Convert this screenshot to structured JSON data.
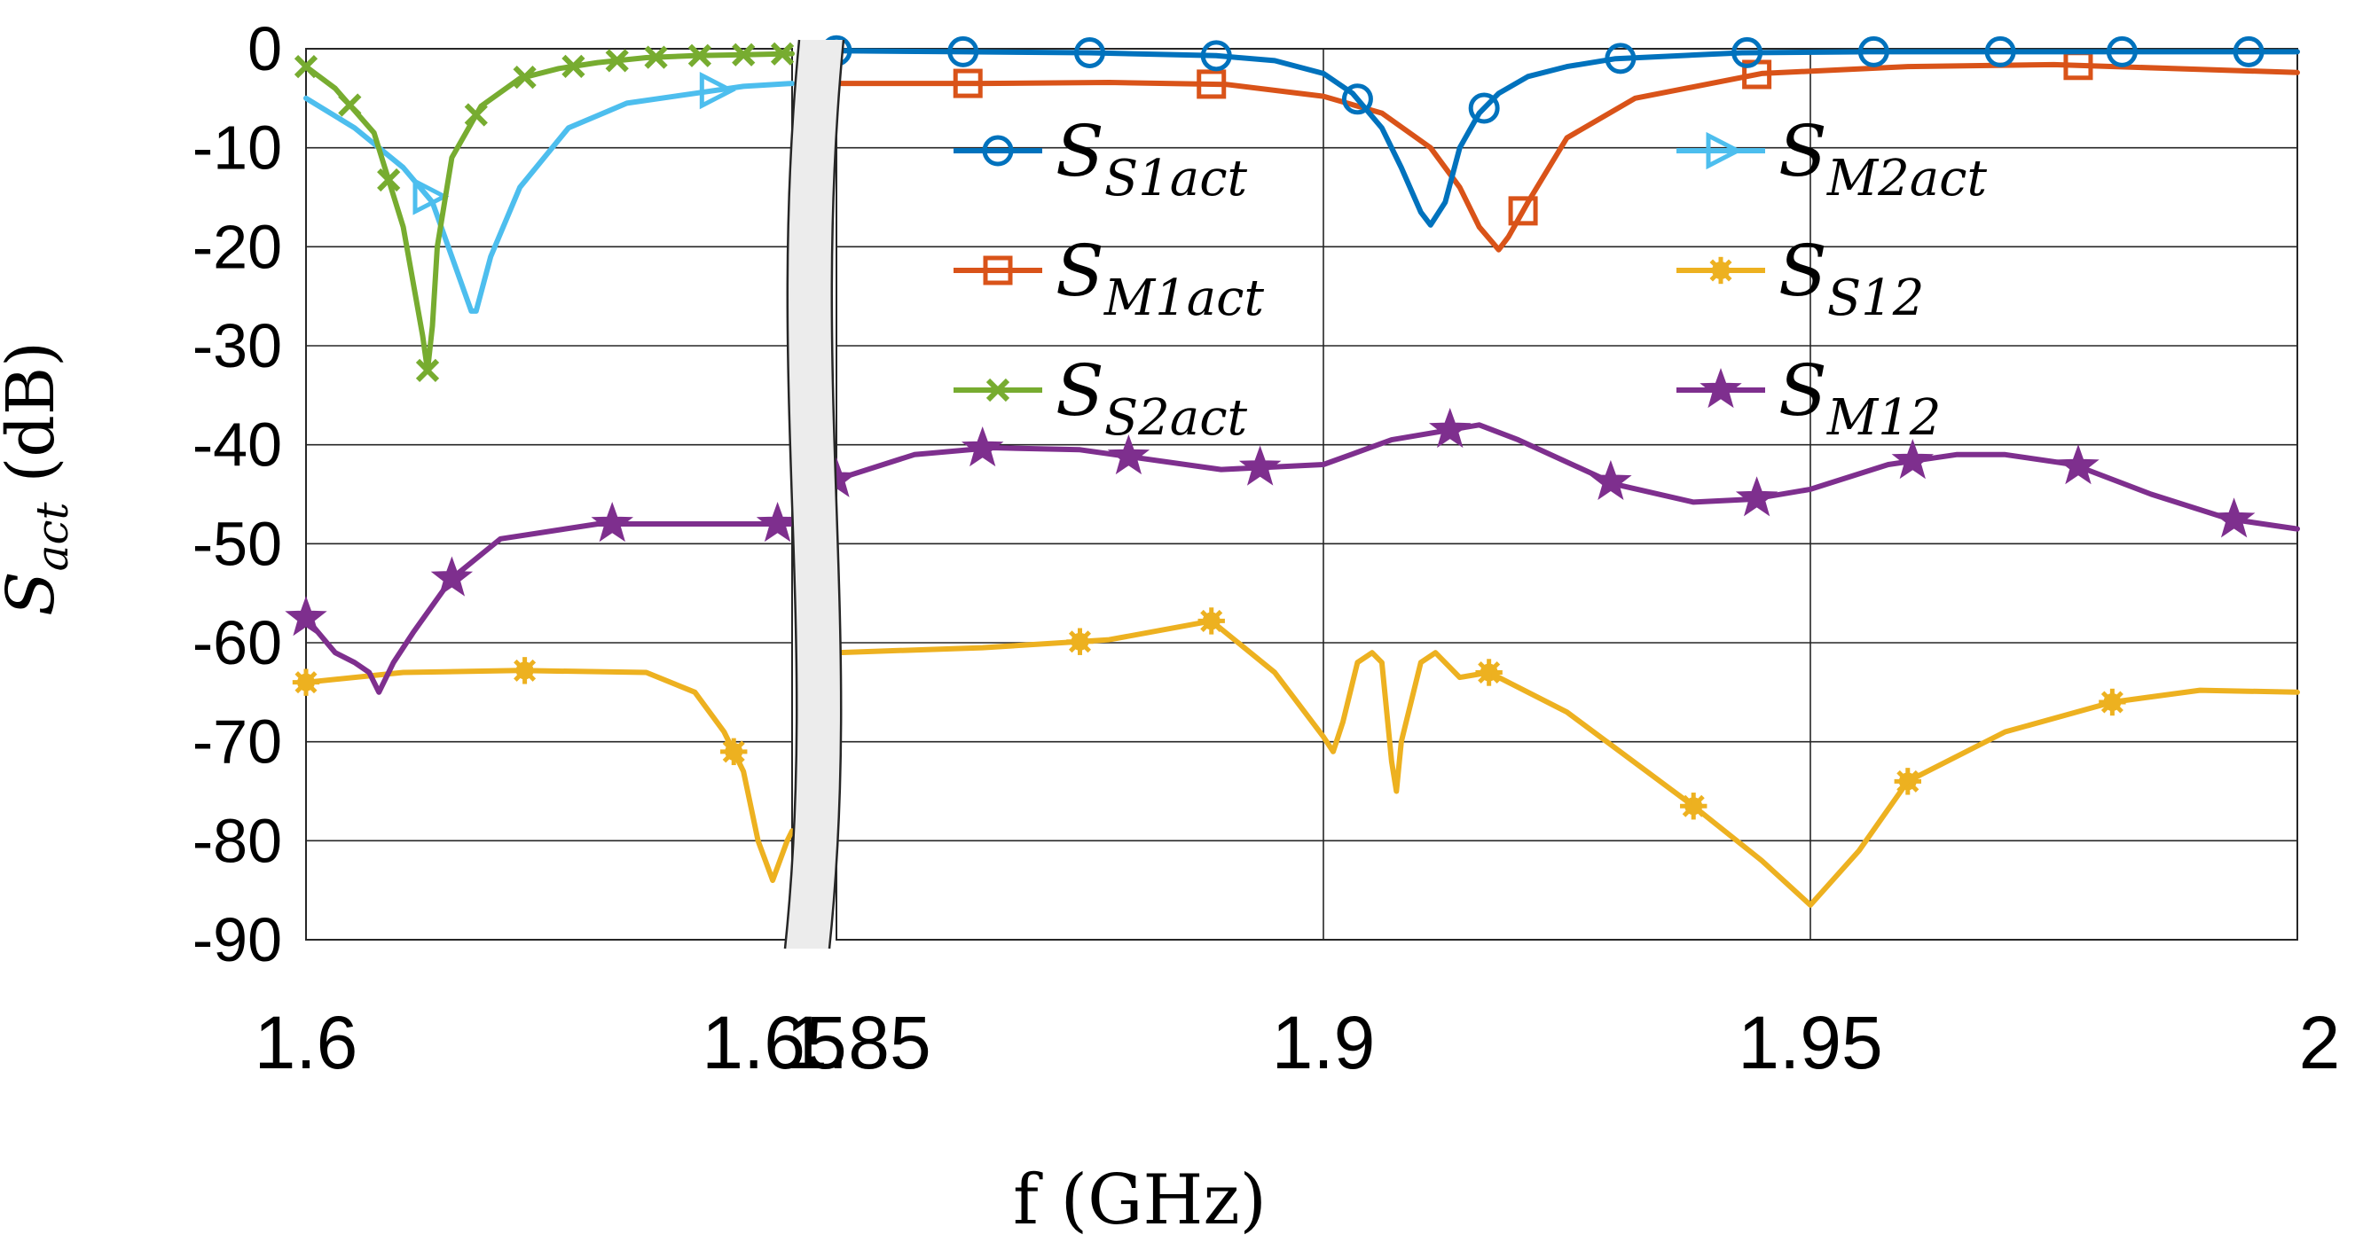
{
  "chart_data": {
    "type": "line",
    "ylabel": "S_act (dB)",
    "ylabel_main": "S",
    "ylabel_sub": "act",
    "ylabel_unit": "(dB)",
    "xlabel": "f (GHz)",
    "ylim": [
      -90,
      0
    ],
    "yticks": [
      0,
      -10,
      -20,
      -30,
      -40,
      -50,
      -60,
      -70,
      -80,
      -90
    ],
    "ytick_labels": [
      "0",
      "-10",
      "-20",
      "-30",
      "-40",
      "-50",
      "-60",
      "-70",
      "-80",
      "-90"
    ],
    "x_break": true,
    "xlim_left": [
      1.6,
      1.65
    ],
    "xlim_right": [
      1.85,
      2.0
    ],
    "xtick_labels_left": [
      "1.6",
      "1.65"
    ],
    "xtick_labels_right": [
      "1.85",
      "1.9",
      "1.95",
      "2"
    ],
    "grid": true,
    "legend_position": "upper-middle",
    "series": [
      {
        "name": "S_S1act",
        "label_main": "S",
        "label_sub": "S1act",
        "color": "#0072bd",
        "marker": "circle",
        "x": [
          1.6,
          1.645,
          1.65,
          1.85,
          1.863,
          1.876,
          1.889,
          1.895,
          1.9,
          1.903,
          1.906,
          1.908,
          1.91,
          1.911,
          1.9125,
          1.914,
          1.916,
          1.918,
          1.921,
          1.925,
          1.93,
          1.943,
          1.956,
          1.969,
          1.982,
          2.0
        ],
        "values": [
          null,
          null,
          null,
          -0.2,
          -0.3,
          -0.4,
          -0.7,
          -1.2,
          -2.5,
          -4.5,
          -8.0,
          -12.0,
          -16.5,
          -17.8,
          -15.5,
          -10.0,
          -6.5,
          -4.5,
          -2.8,
          -1.8,
          -1.0,
          -0.4,
          -0.3,
          -0.3,
          -0.3,
          -0.3
        ]
      },
      {
        "name": "S_M1act",
        "label_main": "S",
        "label_sub": "M1act",
        "color": "#d95319",
        "marker": "square",
        "x": [
          1.85,
          1.865,
          1.878,
          1.89,
          1.9,
          1.906,
          1.911,
          1.914,
          1.916,
          1.918,
          1.919,
          1.921,
          1.925,
          1.932,
          1.945,
          1.96,
          1.975,
          2.0
        ],
        "values": [
          -3.5,
          -3.5,
          -3.4,
          -3.6,
          -4.8,
          -6.5,
          -10.0,
          -14.0,
          -18.0,
          -20.3,
          -19.0,
          -15.5,
          -9.0,
          -5.0,
          -2.5,
          -1.8,
          -1.6,
          -2.4
        ]
      },
      {
        "name": "S_S2act",
        "label_main": "S",
        "label_sub": "S2act",
        "color": "#77ac30",
        "marker": "x",
        "x": [
          1.6,
          1.603,
          1.607,
          1.61,
          1.612,
          1.6125,
          1.613,
          1.6135,
          1.615,
          1.618,
          1.622,
          1.626,
          1.63,
          1.635,
          1.64,
          1.645,
          1.65
        ],
        "values": [
          -1.8,
          -4.0,
          -8.5,
          -18.0,
          -29.0,
          -32.5,
          -28.0,
          -20.0,
          -11.0,
          -5.8,
          -3.0,
          -2.0,
          -1.4,
          -0.9,
          -0.7,
          -0.6,
          -0.5
        ]
      },
      {
        "name": "S_M2act",
        "label_main": "S",
        "label_sub": "M2act",
        "color": "#4dbeee",
        "marker": "triangle-right",
        "x": [
          1.6,
          1.605,
          1.61,
          1.613,
          1.615,
          1.617,
          1.6175,
          1.619,
          1.622,
          1.627,
          1.633,
          1.64,
          1.645,
          1.65
        ],
        "values": [
          -5.0,
          -8.0,
          -12.0,
          -15.5,
          -21.0,
          -26.5,
          -26.5,
          -21.0,
          -14.0,
          -8.0,
          -5.5,
          -4.5,
          -3.8,
          -3.5
        ]
      },
      {
        "name": "S_S12",
        "label_main": "S",
        "label_sub": "S12",
        "color": "#edb120",
        "marker": "asterisk",
        "x": [
          1.6,
          1.61,
          1.622,
          1.635,
          1.64,
          1.643,
          1.645,
          1.6465,
          1.648,
          1.6495,
          1.65,
          1.85,
          1.865,
          1.878,
          1.8885,
          1.895,
          1.9,
          1.901,
          1.902,
          1.9035,
          1.905,
          1.906,
          1.907,
          1.9075,
          1.908,
          1.91,
          1.9115,
          1.914,
          1.917,
          1.925,
          1.938,
          1.945,
          1.95,
          1.955,
          1.96,
          1.97,
          1.981,
          1.99,
          2.0
        ],
        "values": [
          -64.0,
          -63.0,
          -62.8,
          -63.0,
          -65.0,
          -69.0,
          -73.0,
          -80.0,
          -84.0,
          -80.0,
          -79.0,
          -61.0,
          -60.5,
          -59.7,
          -57.8,
          -63.0,
          -69.5,
          -71.0,
          -68.0,
          -62.0,
          -61.0,
          -62.0,
          -72.0,
          -75.0,
          -70.0,
          -62.0,
          -61.0,
          -63.5,
          -63.0,
          -67.0,
          -76.5,
          -82.0,
          -86.5,
          -81.0,
          -74.0,
          -69.0,
          -66.0,
          -64.8,
          -65.0
        ]
      },
      {
        "name": "S_M12",
        "label_main": "S",
        "label_sub": "M12",
        "color": "#7e2f8e",
        "marker": "star",
        "x": [
          1.6,
          1.603,
          1.605,
          1.6065,
          1.6075,
          1.609,
          1.611,
          1.615,
          1.62,
          1.63,
          1.64,
          1.65,
          1.85,
          1.858,
          1.866,
          1.875,
          1.8895,
          1.9,
          1.907,
          1.913,
          1.916,
          1.92,
          1.93,
          1.938,
          1.944,
          1.95,
          1.958,
          1.965,
          1.97,
          1.977,
          1.985,
          1.993,
          2.0
        ],
        "values": [
          -57.5,
          -61.0,
          -62.0,
          -63.0,
          -65.0,
          -62.0,
          -59.0,
          -53.5,
          -49.5,
          -48.0,
          -48.0,
          -48.0,
          -43.5,
          -41.0,
          -40.3,
          -40.5,
          -42.5,
          -42.0,
          -39.5,
          -38.5,
          -38.0,
          -39.5,
          -44.0,
          -45.8,
          -45.5,
          -44.5,
          -42.0,
          -41.0,
          -41.0,
          -42.0,
          -45.0,
          -47.5,
          -48.5
        ]
      }
    ]
  }
}
